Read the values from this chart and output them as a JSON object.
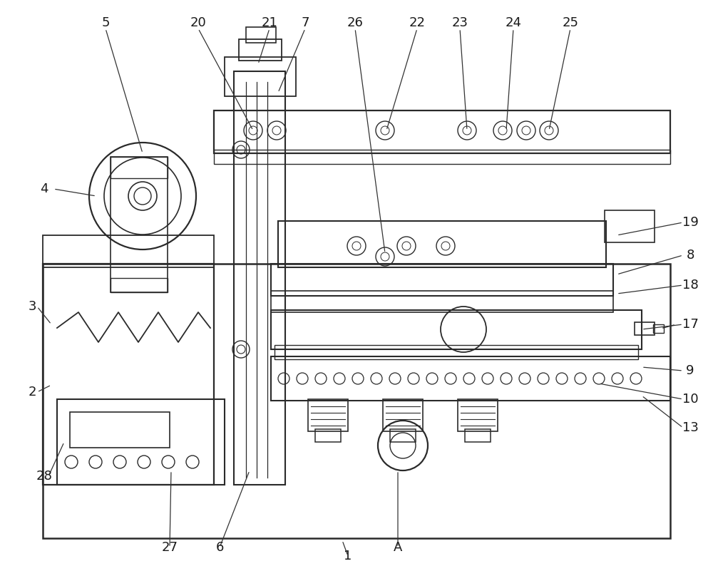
{
  "fig_width": 10.0,
  "fig_height": 8.08,
  "line_color": "#2a2a2a",
  "label_fontsize": 12
}
